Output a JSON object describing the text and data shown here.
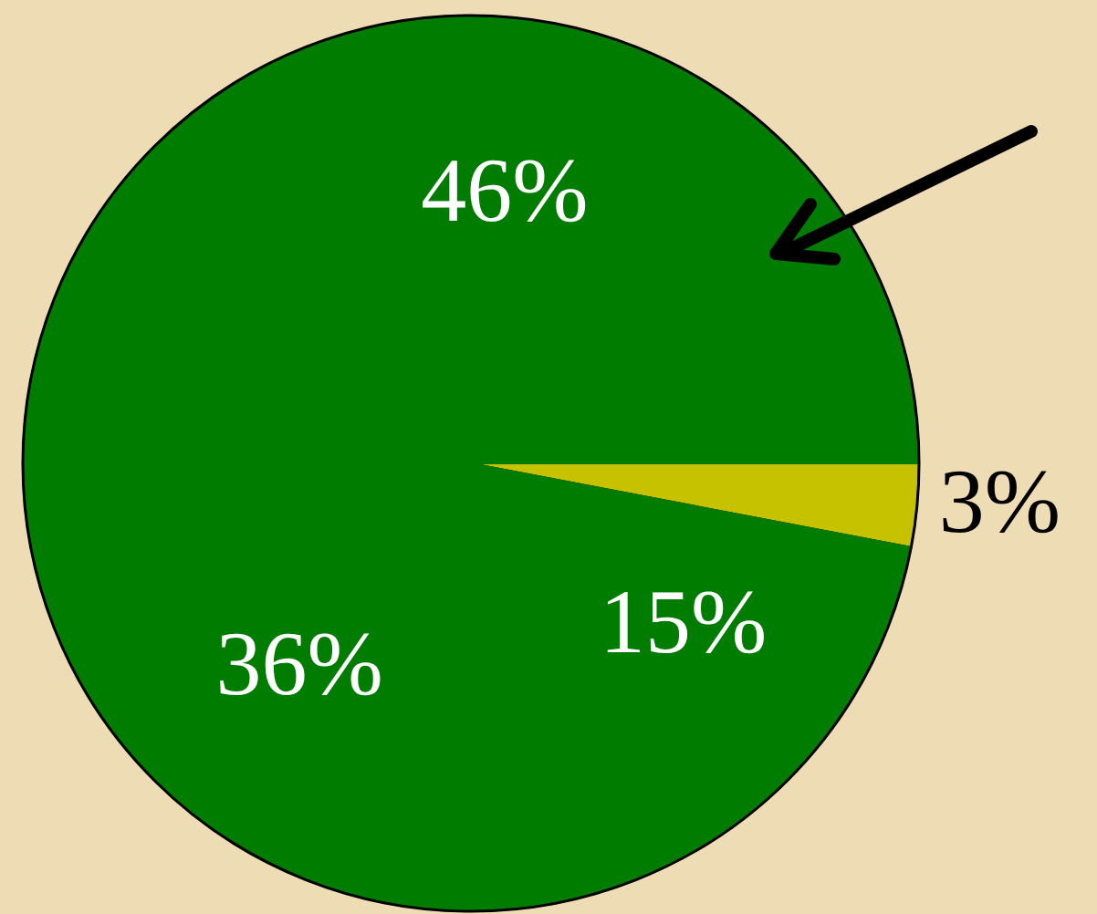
{
  "chart_data": {
    "type": "pie",
    "categories": [
      null,
      null,
      null,
      null
    ],
    "values": [
      3,
      15,
      36,
      46
    ],
    "colors": [
      "#c6c200",
      "#007c00",
      "#007c00",
      "#007c00"
    ],
    "value_labels": [
      "3%",
      "15%",
      "36%",
      "46%"
    ]
  }
}
